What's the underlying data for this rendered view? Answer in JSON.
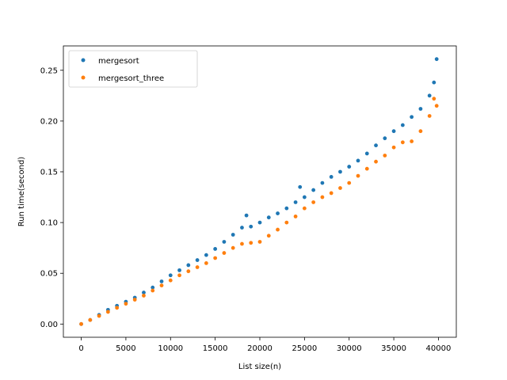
{
  "chart_data": {
    "type": "scatter",
    "title": "",
    "xlabel": "List size(n)",
    "ylabel": "Run time(second)",
    "xlim": [
      -2000,
      42000
    ],
    "ylim": [
      -0.013,
      0.274
    ],
    "xticks": [
      0,
      5000,
      10000,
      15000,
      20000,
      25000,
      30000,
      35000,
      40000
    ],
    "xtick_labels": [
      "0",
      "5000",
      "10000",
      "15000",
      "20000",
      "25000",
      "30000",
      "35000",
      "40000"
    ],
    "yticks": [
      0.0,
      0.05,
      0.1,
      0.15,
      0.2,
      0.25
    ],
    "ytick_labels": [
      "0.00",
      "0.05",
      "0.10",
      "0.15",
      "0.20",
      "0.25"
    ],
    "grid": false,
    "legend_position": "top-left",
    "series": [
      {
        "name": "mergesort",
        "color": "#1f77b4",
        "x": [
          0,
          1000,
          2000,
          3000,
          4000,
          5000,
          6000,
          7000,
          8000,
          9000,
          10000,
          11000,
          12000,
          13000,
          14000,
          15000,
          16000,
          17000,
          18000,
          18500,
          19000,
          20000,
          21000,
          22000,
          23000,
          24000,
          24500,
          25000,
          26000,
          27000,
          28000,
          29000,
          30000,
          31000,
          32000,
          33000,
          34000,
          35000,
          36000,
          37000,
          38000,
          39000,
          39500,
          39800
        ],
        "y": [
          0.0,
          0.004,
          0.009,
          0.014,
          0.018,
          0.022,
          0.026,
          0.031,
          0.036,
          0.042,
          0.048,
          0.053,
          0.058,
          0.063,
          0.068,
          0.074,
          0.081,
          0.088,
          0.095,
          0.107,
          0.096,
          0.1,
          0.105,
          0.109,
          0.114,
          0.12,
          0.135,
          0.125,
          0.132,
          0.139,
          0.145,
          0.15,
          0.155,
          0.161,
          0.168,
          0.176,
          0.183,
          0.19,
          0.196,
          0.204,
          0.212,
          0.225,
          0.238,
          0.261
        ]
      },
      {
        "name": "mergesort_three",
        "color": "#ff7f0e",
        "x": [
          0,
          1000,
          2000,
          3000,
          4000,
          5000,
          6000,
          7000,
          8000,
          9000,
          10000,
          11000,
          12000,
          13000,
          14000,
          15000,
          16000,
          17000,
          18000,
          19000,
          20000,
          21000,
          22000,
          23000,
          24000,
          25000,
          26000,
          27000,
          28000,
          29000,
          30000,
          31000,
          32000,
          33000,
          34000,
          35000,
          36000,
          37000,
          38000,
          39000,
          39500,
          39800
        ],
        "y": [
          0.0,
          0.004,
          0.008,
          0.012,
          0.016,
          0.02,
          0.024,
          0.028,
          0.033,
          0.038,
          0.043,
          0.048,
          0.052,
          0.056,
          0.06,
          0.065,
          0.07,
          0.075,
          0.079,
          0.08,
          0.081,
          0.087,
          0.093,
          0.1,
          0.106,
          0.114,
          0.12,
          0.125,
          0.129,
          0.134,
          0.139,
          0.146,
          0.153,
          0.16,
          0.166,
          0.174,
          0.179,
          0.18,
          0.19,
          0.205,
          0.222,
          0.215
        ]
      }
    ]
  }
}
